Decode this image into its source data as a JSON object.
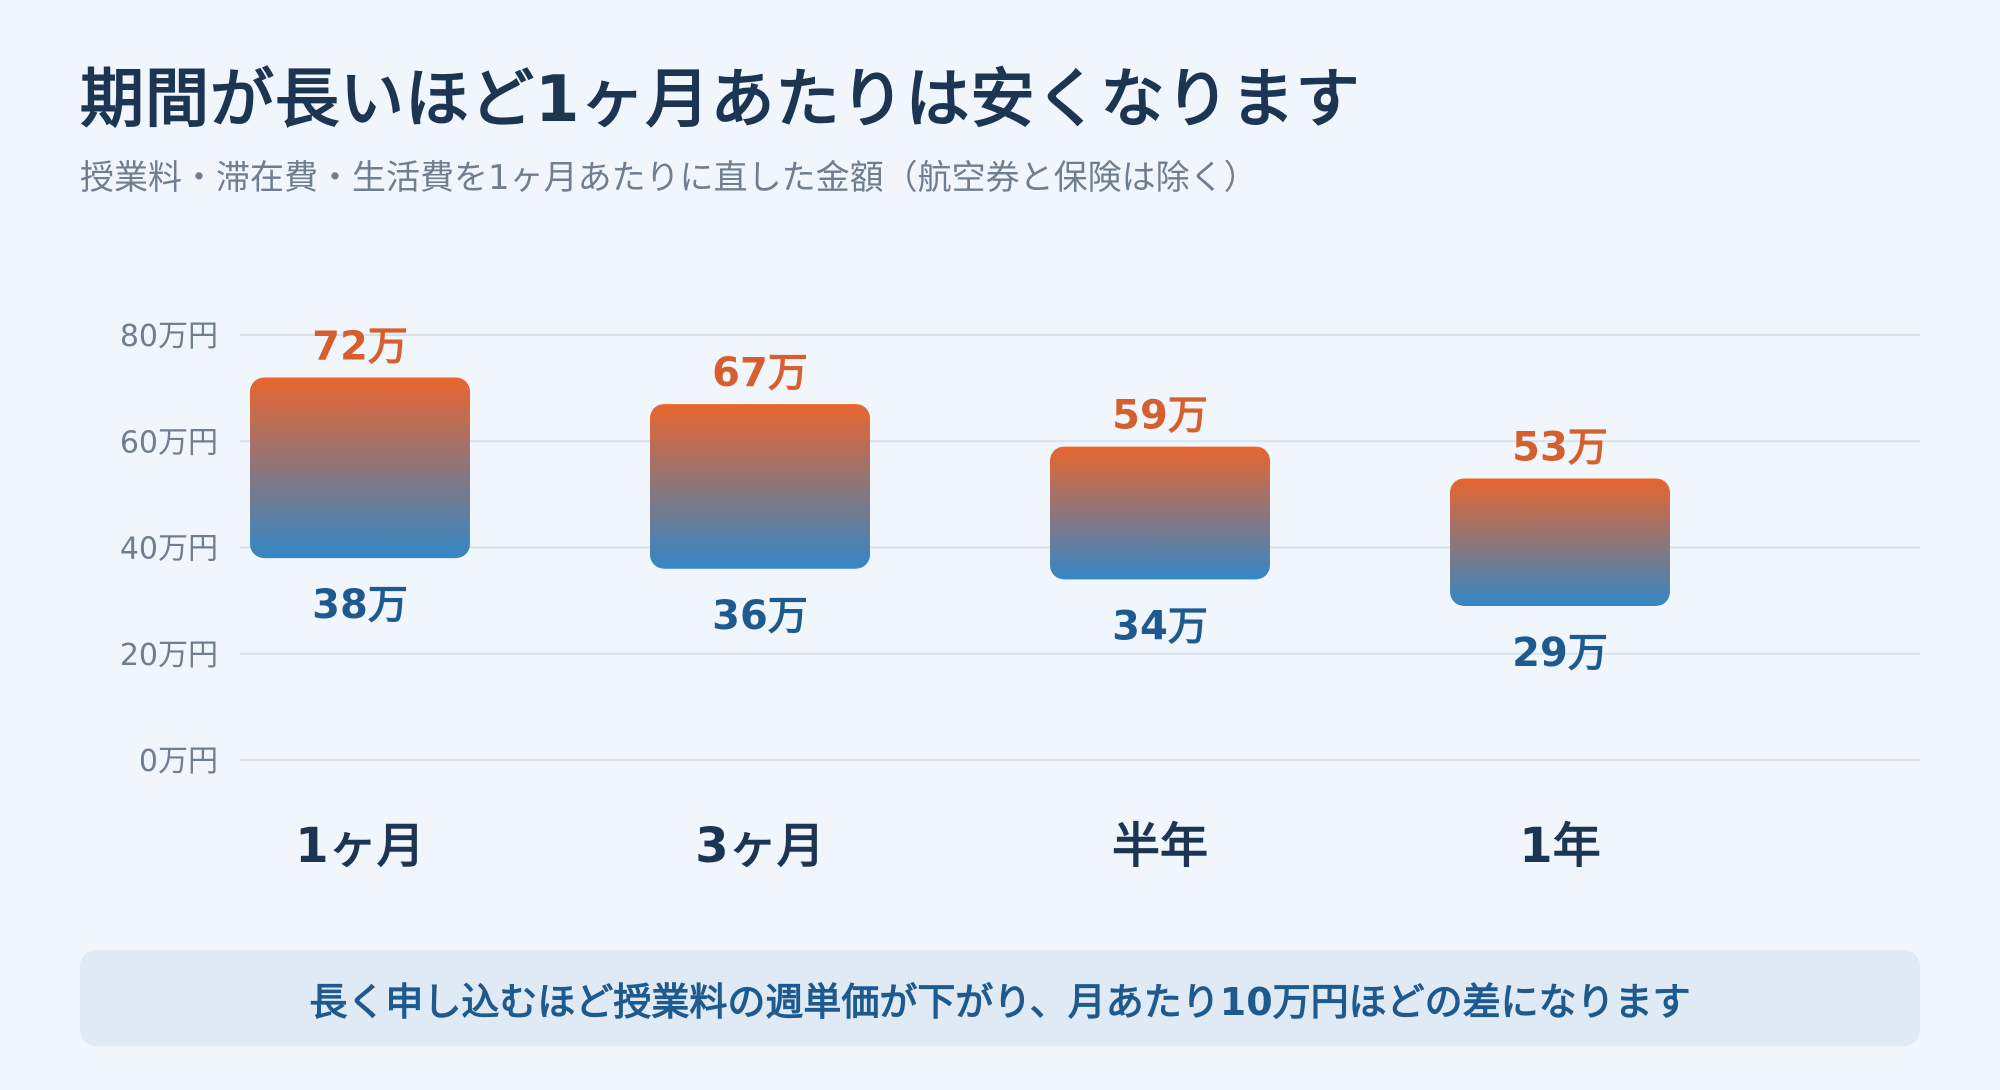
{
  "header": {
    "title": "期間が長いほど1ヶ月あたりは安くなります",
    "subtitle": "授業料・滞在費・生活費を1ヶ月あたりに直した金額（航空券と保険は除く）"
  },
  "note": "長く申し込むほど授業料の週単価が下がり、月あたり10万円ほどの差になります",
  "colors": {
    "bar_top": "#e8652e",
    "bar_bottom": "#3387c6",
    "label_max": "#d65f2f",
    "label_min": "#1f5a8f"
  },
  "chart_data": {
    "type": "bar",
    "subtype": "floating-range",
    "categories": [
      "1ヶ月",
      "3ヶ月",
      "半年",
      "1年"
    ],
    "series": [
      {
        "name": "min",
        "values": [
          38,
          36,
          34,
          29
        ]
      },
      {
        "name": "max",
        "values": [
          72,
          67,
          59,
          53
        ]
      }
    ],
    "min_labels": [
      "38万",
      "36万",
      "34万",
      "29万"
    ],
    "max_labels": [
      "72万",
      "67万",
      "59万",
      "53万"
    ],
    "y_ticks": [
      0,
      20,
      40,
      60,
      80
    ],
    "y_tick_labels": [
      "0万円",
      "20万円",
      "40万円",
      "60万円",
      "80万円"
    ],
    "ylim": [
      0,
      80
    ],
    "grid": true,
    "legend": "none"
  }
}
